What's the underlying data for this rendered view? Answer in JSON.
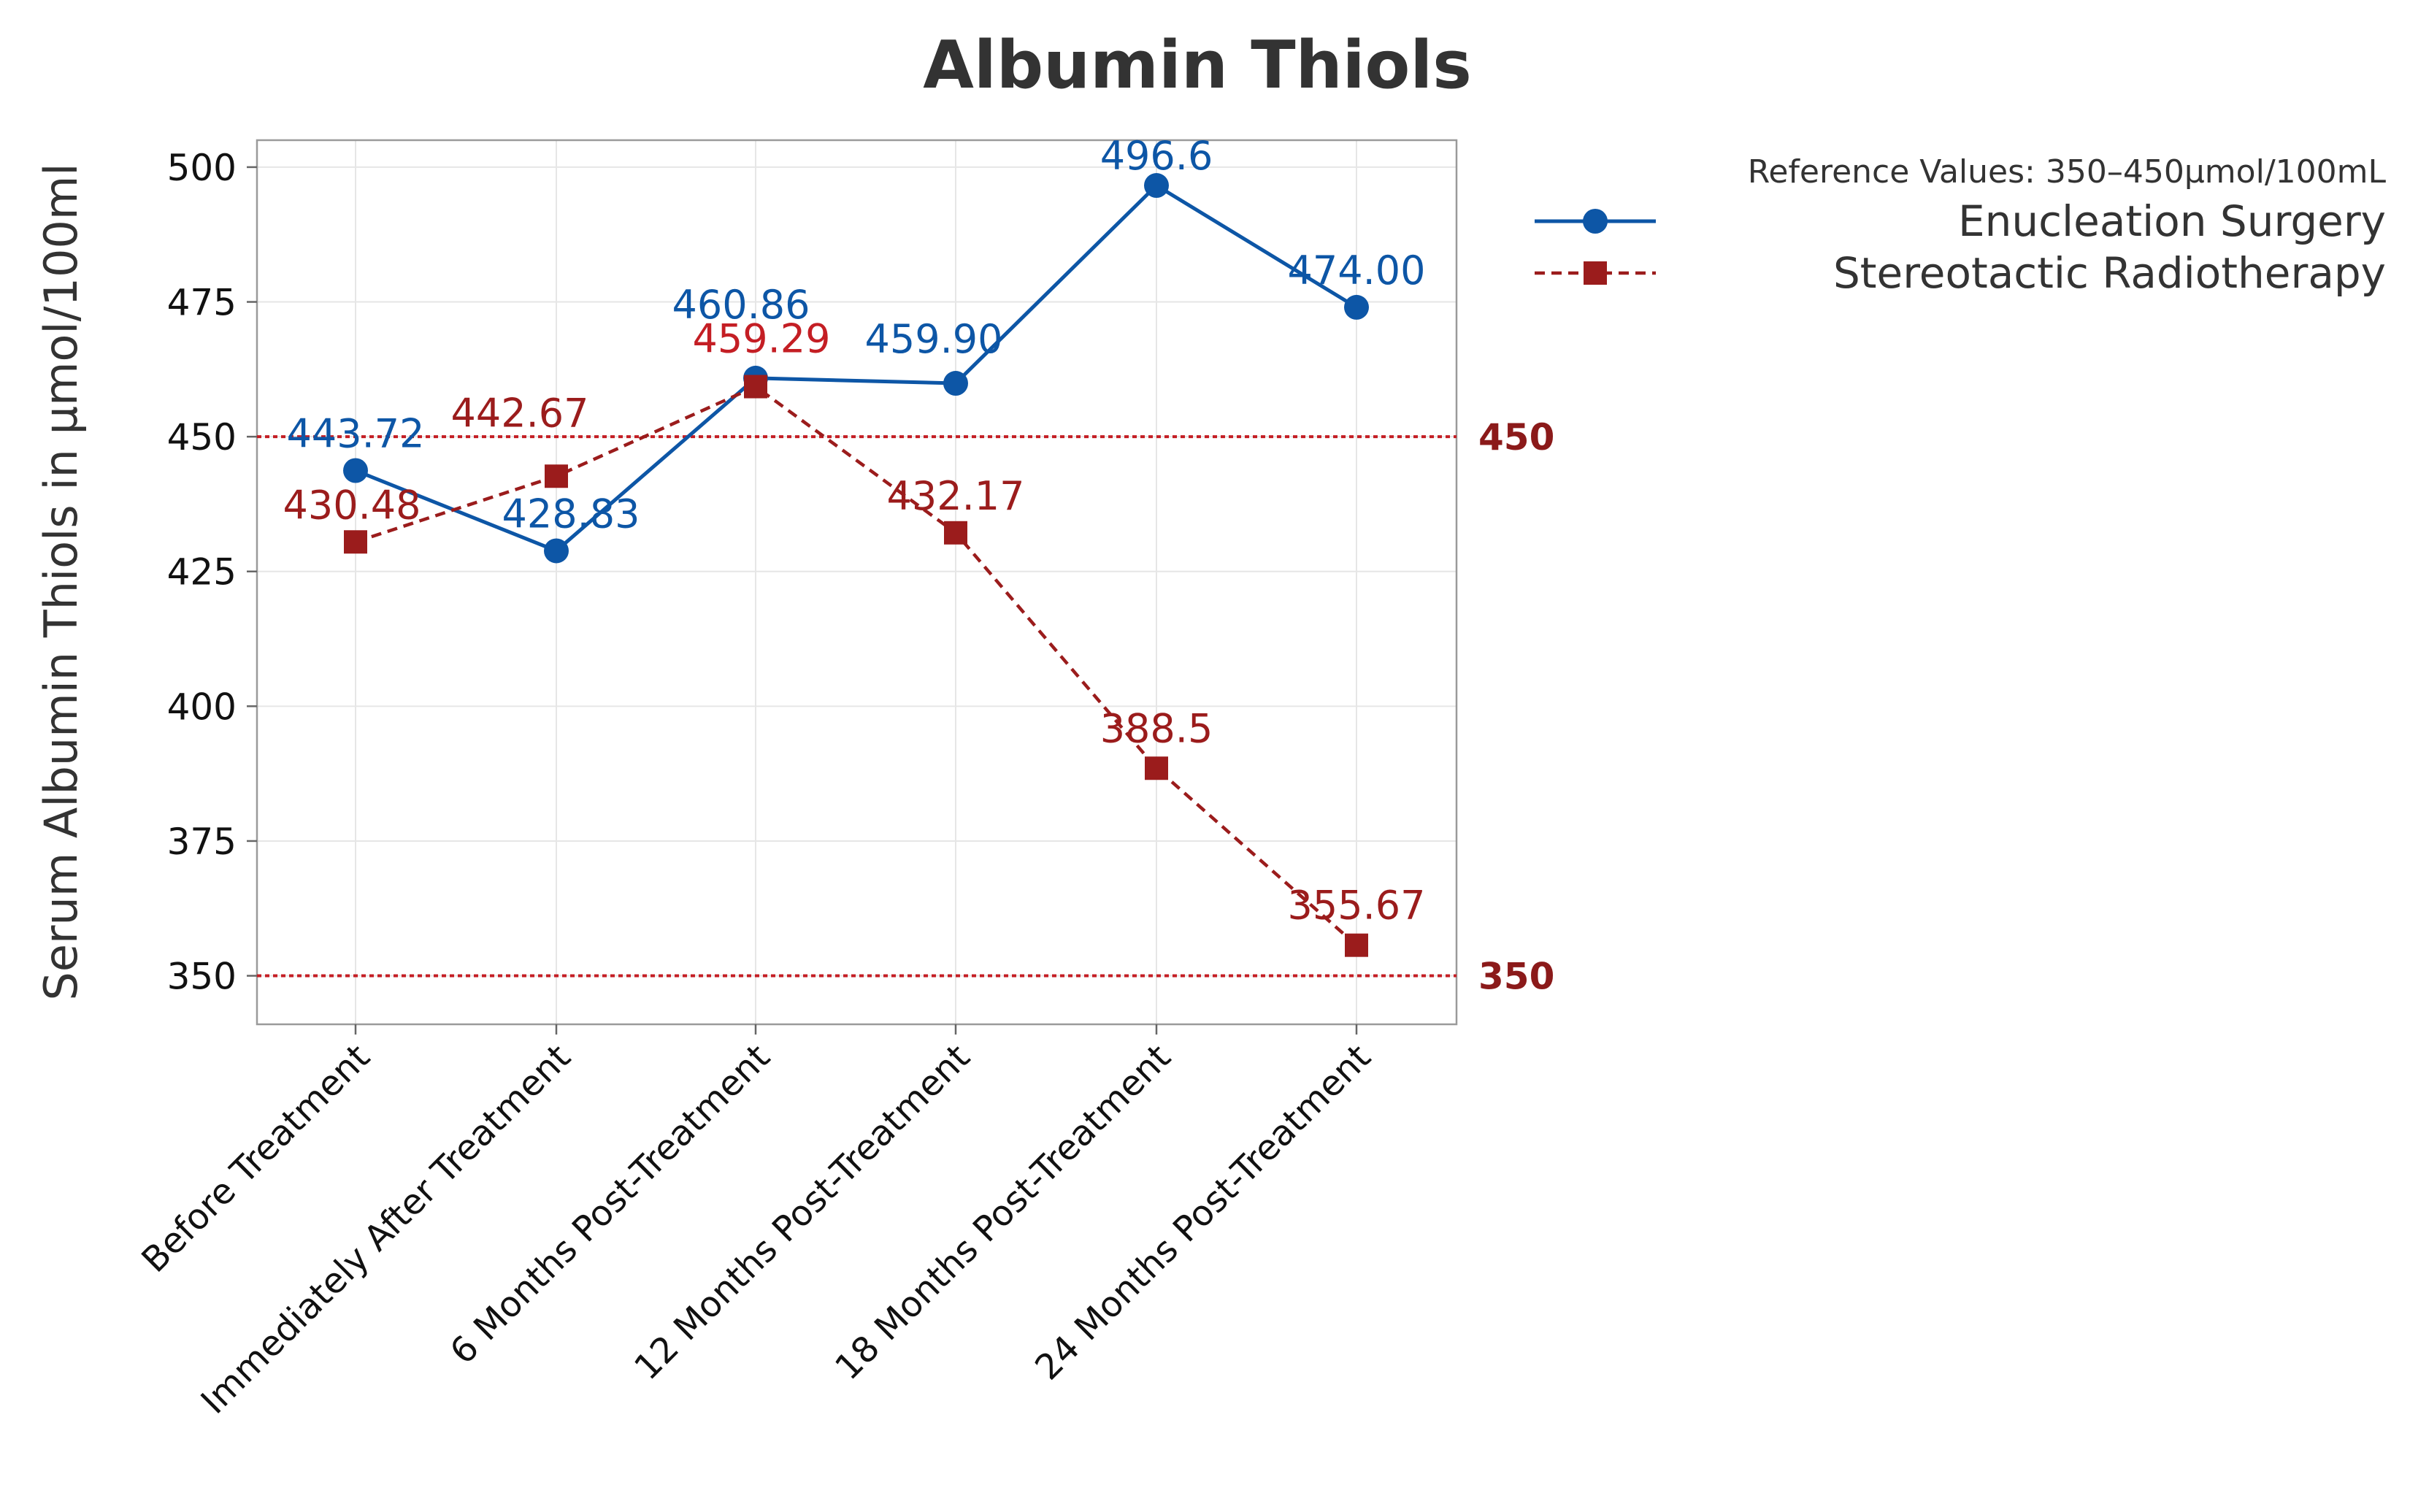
{
  "chart_data": {
    "type": "line",
    "title": "Albumin Thiols",
    "xlabel": "",
    "ylabel": "Serum Albumin Thiols in µmol/100ml",
    "categories": [
      "Before Treatment",
      "Immediately After Treatment",
      "6 Months Post-Treatment",
      "12 Months Post-Treatment",
      "18 Months Post-Treatment",
      "24 Months Post-Treatment"
    ],
    "ylim": [
      341,
      505
    ],
    "yticks": [
      350,
      375,
      400,
      425,
      450,
      475,
      500
    ],
    "grid": true,
    "series": [
      {
        "name": "Enucleation Surgery",
        "color": "#0D56A6",
        "marker": "circle",
        "line": "solid",
        "values": [
          443.72,
          428.83,
          460.86,
          459.9,
          496.6,
          474.0
        ],
        "labels": [
          "443.72",
          "428.83",
          "460.86",
          "459.90",
          "496.6",
          "474.00"
        ]
      },
      {
        "name": "Stereotactic Radiotherapy",
        "color": "#9B1C1C",
        "marker": "square",
        "line": "dashed",
        "values": [
          430.48,
          442.67,
          459.29,
          432.17,
          388.5,
          355.67
        ],
        "labels": [
          "430.48",
          "442.67",
          "459.29",
          "432.17",
          "388.5",
          "355.67"
        ]
      }
    ],
    "reference_lines": [
      {
        "value": 450,
        "label": "450",
        "color": "#C41E24",
        "label_color": "#8B1A1A"
      },
      {
        "value": 350,
        "label": "350",
        "color": "#C41E24",
        "label_color": "#8B1A1A"
      }
    ],
    "legend": {
      "title": "Reference Values: 350–450µmol/100mL",
      "position": "top-right"
    }
  }
}
